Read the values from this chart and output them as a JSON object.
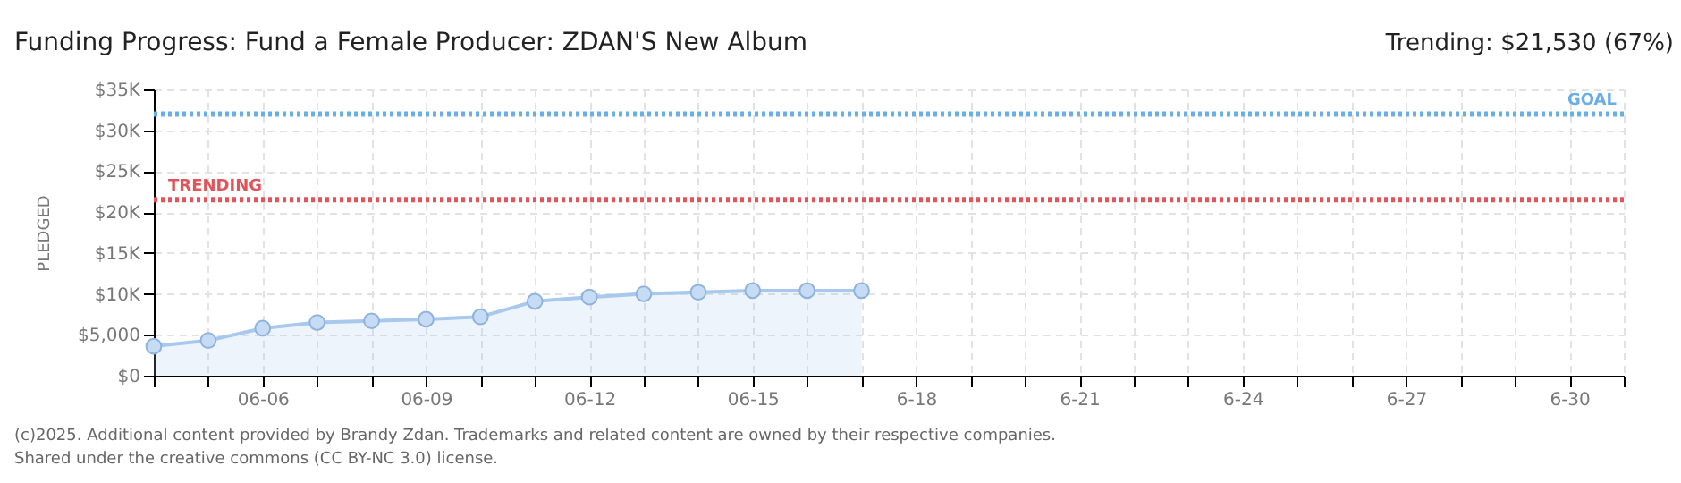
{
  "chart_data": {
    "type": "area",
    "title": "Funding Progress: Fund a Female Producer: ZDAN'S New Album",
    "ylabel": "PLEDGED",
    "annotations": [
      "Trending:  $21,530 (67%)",
      "(c)2025. Additional content provided by Brandy Zdan. Trademarks and related content are owned by their respective companies.",
      "Shared under the creative commons (CC BY-NC 3.0) license."
    ],
    "x": [
      "--06-04",
      "--06-05",
      "--06-06",
      "--06-07",
      "--06-08",
      "--06-09",
      "--06-10",
      "--06-11",
      "--06-12",
      "--06-13",
      "--06-14",
      "--06-15",
      "--06-16",
      "--06-17"
    ],
    "series": [
      {
        "color": "#a8c8ee",
        "values": [
          3600,
          4300,
          5800,
          6500,
          6700,
          6900,
          7200,
          9100,
          9600,
          10000,
          10200,
          10400,
          10400,
          10400
        ]
      }
    ],
    "xlim": [
      "--06-04",
      "--07-01"
    ],
    "xticks": [
      {
        "value": "--06-04",
        "label": null
      },
      {
        "value": "--06-05",
        "label": null
      },
      {
        "value": "--06-06",
        "label": "06-06"
      },
      {
        "value": "--06-07",
        "label": null
      },
      {
        "value": "--06-08",
        "label": null
      },
      {
        "value": "--06-09",
        "label": "06-09"
      },
      {
        "value": "--06-10",
        "label": null
      },
      {
        "value": "--06-11",
        "label": null
      },
      {
        "value": "--06-12",
        "label": "06-12"
      },
      {
        "value": "--06-13",
        "label": null
      },
      {
        "value": "--06-14",
        "label": null
      },
      {
        "value": "--06-15",
        "label": "06-15"
      },
      {
        "value": "--06-16",
        "label": null
      },
      {
        "value": "--06-17",
        "label": null
      },
      {
        "value": "--06-18",
        "label": "6-18"
      },
      {
        "value": "--06-19",
        "label": null
      },
      {
        "value": "--06-20",
        "label": null
      },
      {
        "value": "--06-21",
        "label": "6-21"
      },
      {
        "value": "--06-22",
        "label": null
      },
      {
        "value": "--06-23",
        "label": null
      },
      {
        "value": "--06-24",
        "label": "6-24"
      },
      {
        "value": "--06-25",
        "label": null
      },
      {
        "value": "--06-26",
        "label": null
      },
      {
        "value": "--06-27",
        "label": "6-27"
      },
      {
        "value": "--06-28",
        "label": null
      },
      {
        "value": "--06-29",
        "label": null
      },
      {
        "value": "--06-30",
        "label": "6-30"
      },
      {
        "value": "--07-01",
        "label": null
      }
    ],
    "ylim": [
      0,
      35000
    ],
    "yticks": [
      {
        "value": 0,
        "label": "$0"
      },
      {
        "value": 5000,
        "label": "$5,000"
      },
      {
        "value": 10000,
        "label": "$10K"
      },
      {
        "value": 15000,
        "label": "$15K"
      },
      {
        "value": 20000,
        "label": "$20K"
      },
      {
        "value": 25000,
        "label": "$25K"
      },
      {
        "value": 30000,
        "label": "$30K"
      },
      {
        "value": 35000,
        "label": "$35K"
      }
    ],
    "ref_lines": [
      {
        "axis": "y",
        "value": 32000,
        "label": "GOAL",
        "color": "#6aaee8",
        "line_style": "dotted"
      },
      {
        "axis": "y",
        "value": 21530,
        "label": "TRENDING",
        "color": "#e0555a",
        "line_style": "dotted"
      }
    ],
    "grid": true,
    "marker": "circle",
    "line_style": "solid"
  }
}
